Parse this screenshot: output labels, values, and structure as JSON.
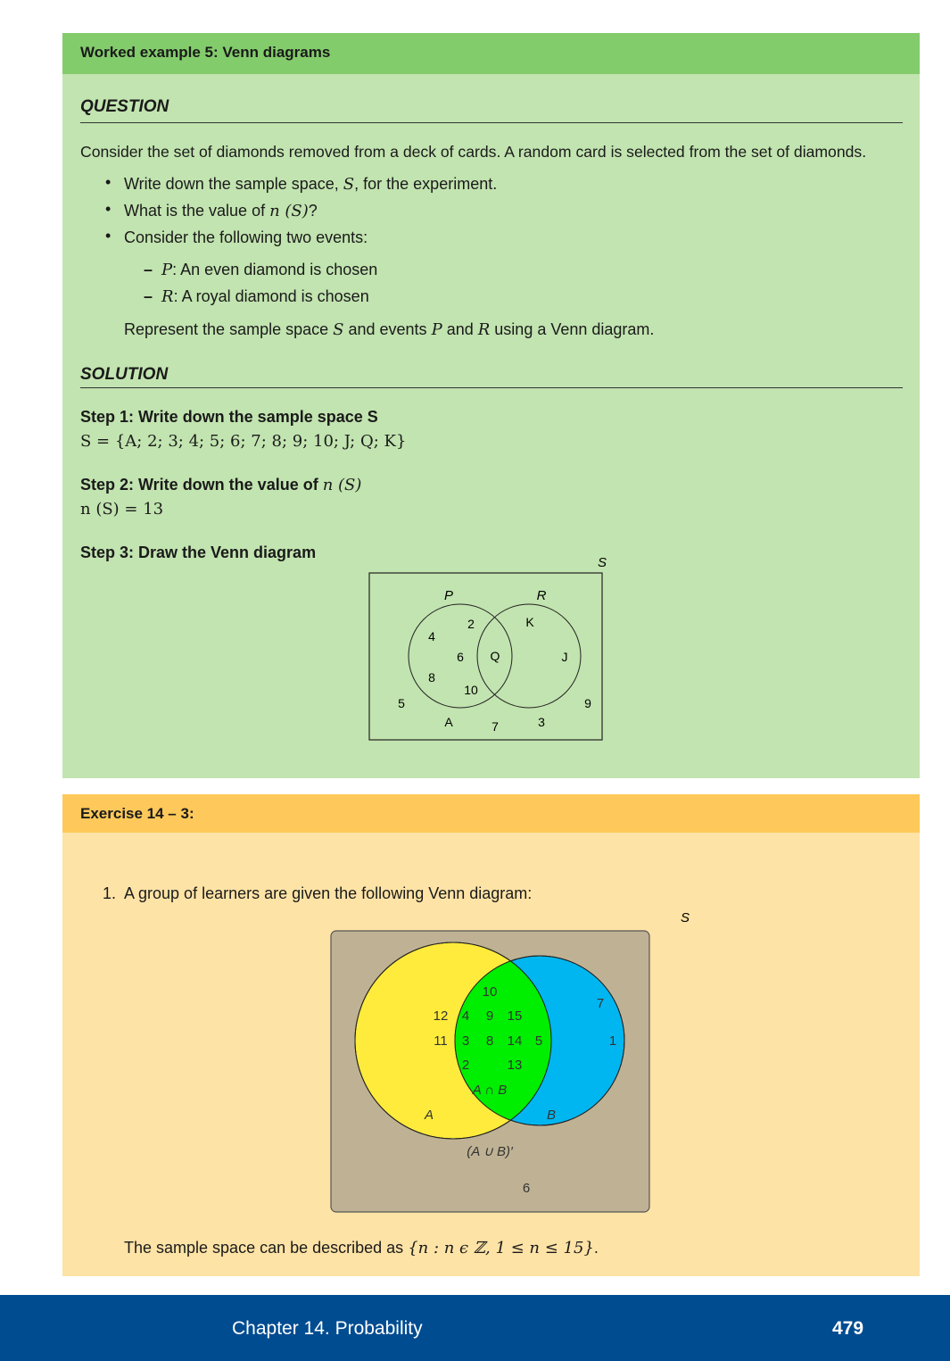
{
  "worked_example": {
    "title": "Worked example 5: Venn diagrams",
    "question_heading": "QUESTION",
    "question_intro": "Consider the set of diamonds removed from a deck of cards. A random card is selected from the set of diamonds.",
    "bullets": [
      [
        "Write down the sample space, ",
        "S",
        ", for the experiment."
      ],
      [
        "What is the value of ",
        "n (S)",
        "?"
      ],
      [
        "Consider the following two events:",
        "",
        ""
      ]
    ],
    "sub_bullets": [
      [
        "P",
        ": An even diamond is chosen"
      ],
      [
        "R",
        ": A royal diamond is chosen"
      ]
    ],
    "represent": [
      "Represent the sample space ",
      "S",
      " and events ",
      "P",
      " and ",
      "R",
      " using a Venn diagram."
    ],
    "solution_heading": "SOLUTION",
    "step1_title": "Step 1: Write down the sample space S",
    "step1_math": "S = {A; 2; 3; 4; 5; 6; 7; 8; 9; 10; J; Q; K}",
    "step2_title": "Step 2: Write down the value of ",
    "step2_title_math": "n (S)",
    "step2_math": "n (S) = 13",
    "step3_title": "Step 3: Draw the Venn diagram",
    "venn1": {
      "universe_label": "S",
      "set_labels": [
        "P",
        "R"
      ],
      "elements": [
        "2",
        "4",
        "6",
        "8",
        "10",
        "Q",
        "K",
        "J",
        "5",
        "A",
        "7",
        "3",
        "9"
      ]
    }
  },
  "exercise": {
    "title": "Exercise 14 – 3:",
    "item_number": "1.",
    "item_text": "A group of learners are given the following Venn diagram:",
    "venn2": {
      "universe_label": "S",
      "set_labels": [
        "A",
        "B"
      ],
      "intersection_label": "A ∩ B",
      "complement_label": "(A ∪ B)′",
      "intersection_elements": [
        "10",
        "12",
        "4",
        "9",
        "15",
        "11",
        "3",
        "8",
        "14",
        "5",
        "2",
        "13"
      ],
      "b_only_elements": [
        "7",
        "1"
      ],
      "outside_elements": [
        "6"
      ],
      "colors": {
        "a": "#ffeb3b",
        "b": "#00b6f0",
        "intersection": "#00ee00",
        "universe": "#bfb294"
      }
    },
    "sample_space_text": "The sample space can be described as ",
    "sample_space_math": "{n : n ϵ ℤ, 1 ≤ n ≤ 15}",
    "sample_space_end": "."
  },
  "footer": {
    "chapter": "Chapter 14. Probability",
    "page": "479"
  }
}
